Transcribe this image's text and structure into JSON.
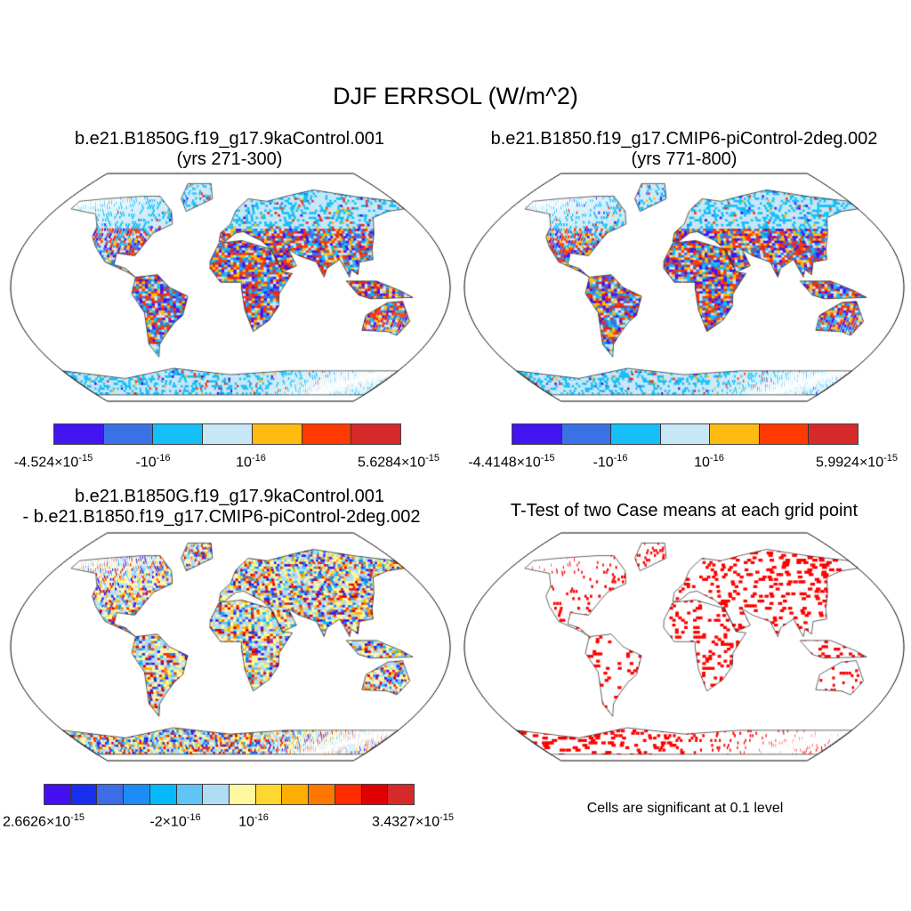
{
  "title": "DJF ERRSOL (W/m^2)",
  "chart_data": [
    {
      "type": "map",
      "title_line1": "b.e21.B1850G.f19_g17.9kaControl.001",
      "title_line2": "(yrs 271-300)",
      "colorbar": {
        "colors": [
          "#4214f0",
          "#3a72e6",
          "#16bff8",
          "#c8e7f6",
          "#fdbb10",
          "#fe3a00",
          "#d62a2a"
        ],
        "labels": [
          {
            "m": "-4.524",
            "e": "-15"
          },
          {
            "m": "-",
            "e": "-16",
            "plain": "-10"
          },
          {
            "m": "",
            "e": "-16",
            "plain": "10"
          },
          {
            "m": "5.6284",
            "e": "-15"
          }
        ]
      }
    },
    {
      "type": "map",
      "title_line1": "b.e21.B1850.f19_g17.CMIP6-piControl-2deg.002",
      "title_line2": "(yrs 771-800)",
      "colorbar": {
        "colors": [
          "#4214f0",
          "#3a72e6",
          "#16bff8",
          "#c8e7f6",
          "#fdbb10",
          "#fe3a00",
          "#d62a2a"
        ],
        "labels": [
          {
            "m": "-4.4148",
            "e": "-15"
          },
          {
            "m": "-",
            "e": "-16",
            "plain": "-10"
          },
          {
            "m": "",
            "e": "-16",
            "plain": "10"
          },
          {
            "m": "5.9924",
            "e": "-15"
          }
        ]
      }
    },
    {
      "type": "map",
      "title_line1": "b.e21.B1850G.f19_g17.9kaControl.001",
      "title_line2": "- b.e21.B1850.f19_g17.CMIP6-piControl-2deg.002",
      "colorbar": {
        "colors": [
          "#4510f0",
          "#1a2ef0",
          "#3c6ce6",
          "#1e8cf8",
          "#06b8fc",
          "#60c4f4",
          "#b0dcf4",
          "#fef8a0",
          "#fed830",
          "#feae00",
          "#fe7800",
          "#fe2a00",
          "#e00000",
          "#d62a2a"
        ],
        "labels": [
          {
            "m": "2.6626",
            "e": "-15"
          },
          {
            "m": "-2",
            "e": "-16"
          },
          {
            "m": "",
            "e": "-16",
            "plain": "10"
          },
          {
            "m": "3.4327",
            "e": "-15"
          }
        ]
      }
    },
    {
      "type": "map",
      "title_line1": "T-Test of two Case means at each grid point",
      "note": "Cells are significant at 0.1 level",
      "sig_color": "#ff0000"
    }
  ],
  "labels_text": {
    "p0": [
      "-4.524×10",
      "-15",
      "-10",
      "-16",
      "10",
      "-16",
      "5.6284×10",
      "-15"
    ],
    "p1": [
      "-4.4148×10",
      "-15",
      "-10",
      "-16",
      "10",
      "-16",
      "5.9924×10",
      "-15"
    ],
    "p2": [
      "2.6626×10",
      "-15",
      "-2×10",
      "-16",
      "10",
      "-16",
      "3.4327×10",
      "-15"
    ]
  }
}
